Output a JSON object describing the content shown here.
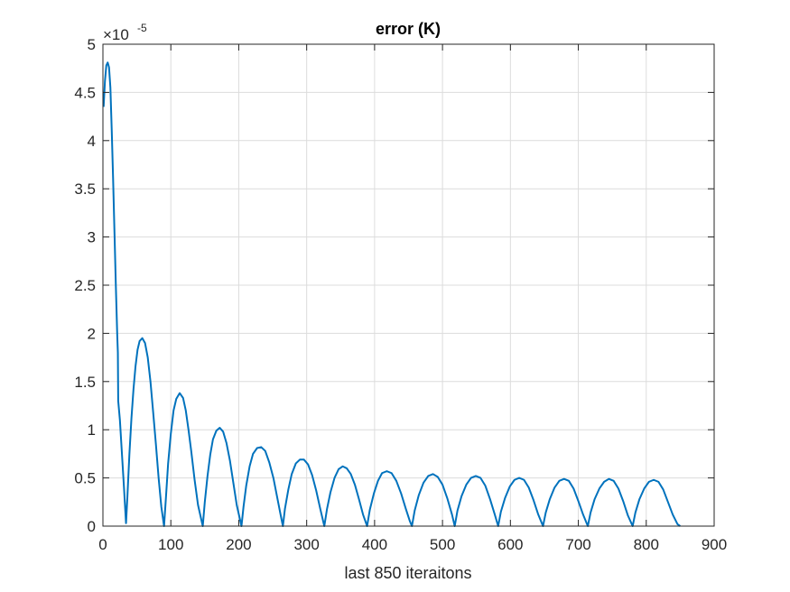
{
  "chart_data": {
    "type": "line",
    "title": "error (K)",
    "xlabel": "last 850 iteraitons",
    "ylabel": "",
    "xlim": [
      0,
      900
    ],
    "ylim": [
      0,
      5
    ],
    "y_exponent_label": "×10",
    "y_exponent": "-5",
    "x_ticks": [
      0,
      100,
      200,
      300,
      400,
      500,
      600,
      700,
      800,
      900
    ],
    "x_tick_labels": [
      "0",
      "100",
      "200",
      "300",
      "400",
      "500",
      "600",
      "700",
      "800",
      "900"
    ],
    "y_ticks": [
      0,
      0.5,
      1,
      1.5,
      2,
      2.5,
      3,
      3.5,
      4,
      4.5,
      5
    ],
    "y_tick_labels": [
      "0",
      "0.5",
      "1",
      "1.5",
      "2",
      "2.5",
      "3",
      "3.5",
      "4",
      "4.5",
      "5"
    ],
    "grid": true,
    "series": [
      {
        "color": "#0072BD",
        "points": [
          [
            1,
            4.35
          ],
          [
            3,
            4.62
          ],
          [
            5,
            4.78
          ],
          [
            7,
            4.81
          ],
          [
            9,
            4.76
          ],
          [
            11,
            4.55
          ],
          [
            13,
            4.1
          ],
          [
            15,
            3.6
          ],
          [
            17,
            3.05
          ],
          [
            19,
            2.5
          ],
          [
            21,
            2.0
          ],
          [
            22,
            1.8
          ],
          [
            22.5,
            1.3
          ],
          [
            25,
            1.1
          ],
          [
            28,
            0.75
          ],
          [
            31,
            0.4
          ],
          [
            34,
            0.03
          ],
          [
            36,
            0.3
          ],
          [
            39,
            0.75
          ],
          [
            42,
            1.12
          ],
          [
            45,
            1.42
          ],
          [
            48,
            1.66
          ],
          [
            51,
            1.83
          ],
          [
            54,
            1.92
          ],
          [
            58,
            1.95
          ],
          [
            62,
            1.9
          ],
          [
            66,
            1.75
          ],
          [
            70,
            1.5
          ],
          [
            74,
            1.18
          ],
          [
            78,
            0.85
          ],
          [
            82,
            0.5
          ],
          [
            86,
            0.2
          ],
          [
            90,
            0.0
          ],
          [
            93,
            0.32
          ],
          [
            96,
            0.65
          ],
          [
            100,
            0.96
          ],
          [
            104,
            1.2
          ],
          [
            108,
            1.32
          ],
          [
            113,
            1.38
          ],
          [
            118,
            1.33
          ],
          [
            122,
            1.2
          ],
          [
            126,
            1.0
          ],
          [
            130,
            0.78
          ],
          [
            135,
            0.48
          ],
          [
            140,
            0.22
          ],
          [
            147,
            0.0
          ],
          [
            150,
            0.25
          ],
          [
            154,
            0.52
          ],
          [
            158,
            0.74
          ],
          [
            162,
            0.9
          ],
          [
            167,
            0.99
          ],
          [
            172,
            1.02
          ],
          [
            177,
            0.98
          ],
          [
            182,
            0.86
          ],
          [
            187,
            0.68
          ],
          [
            192,
            0.45
          ],
          [
            197,
            0.22
          ],
          [
            204,
            0.0
          ],
          [
            207,
            0.2
          ],
          [
            211,
            0.42
          ],
          [
            216,
            0.62
          ],
          [
            221,
            0.75
          ],
          [
            227,
            0.81
          ],
          [
            233,
            0.82
          ],
          [
            239,
            0.78
          ],
          [
            245,
            0.66
          ],
          [
            251,
            0.5
          ],
          [
            256,
            0.32
          ],
          [
            261,
            0.14
          ],
          [
            265,
            0.0
          ],
          [
            268,
            0.18
          ],
          [
            273,
            0.38
          ],
          [
            278,
            0.54
          ],
          [
            284,
            0.65
          ],
          [
            290,
            0.69
          ],
          [
            296,
            0.69
          ],
          [
            302,
            0.64
          ],
          [
            308,
            0.53
          ],
          [
            314,
            0.37
          ],
          [
            320,
            0.18
          ],
          [
            326,
            0.0
          ],
          [
            330,
            0.18
          ],
          [
            335,
            0.35
          ],
          [
            341,
            0.5
          ],
          [
            347,
            0.59
          ],
          [
            353,
            0.62
          ],
          [
            359,
            0.6
          ],
          [
            365,
            0.54
          ],
          [
            371,
            0.43
          ],
          [
            377,
            0.28
          ],
          [
            383,
            0.12
          ],
          [
            389,
            0.0
          ],
          [
            393,
            0.17
          ],
          [
            399,
            0.34
          ],
          [
            405,
            0.47
          ],
          [
            411,
            0.55
          ],
          [
            418,
            0.57
          ],
          [
            425,
            0.55
          ],
          [
            432,
            0.47
          ],
          [
            439,
            0.34
          ],
          [
            446,
            0.18
          ],
          [
            452,
            0.05
          ],
          [
            455,
            0.0
          ],
          [
            459,
            0.16
          ],
          [
            465,
            0.32
          ],
          [
            472,
            0.45
          ],
          [
            479,
            0.52
          ],
          [
            486,
            0.54
          ],
          [
            493,
            0.51
          ],
          [
            500,
            0.43
          ],
          [
            507,
            0.29
          ],
          [
            514,
            0.12
          ],
          [
            518,
            0.0
          ],
          [
            522,
            0.16
          ],
          [
            528,
            0.31
          ],
          [
            535,
            0.43
          ],
          [
            542,
            0.5
          ],
          [
            549,
            0.52
          ],
          [
            556,
            0.5
          ],
          [
            563,
            0.42
          ],
          [
            570,
            0.28
          ],
          [
            577,
            0.12
          ],
          [
            582,
            0.0
          ],
          [
            586,
            0.15
          ],
          [
            592,
            0.29
          ],
          [
            599,
            0.41
          ],
          [
            606,
            0.48
          ],
          [
            613,
            0.5
          ],
          [
            620,
            0.48
          ],
          [
            627,
            0.4
          ],
          [
            634,
            0.27
          ],
          [
            641,
            0.12
          ],
          [
            648,
            0.0
          ],
          [
            652,
            0.14
          ],
          [
            658,
            0.28
          ],
          [
            665,
            0.4
          ],
          [
            672,
            0.47
          ],
          [
            679,
            0.49
          ],
          [
            686,
            0.47
          ],
          [
            693,
            0.39
          ],
          [
            700,
            0.26
          ],
          [
            707,
            0.12
          ],
          [
            714,
            0.0
          ],
          [
            718,
            0.14
          ],
          [
            724,
            0.28
          ],
          [
            731,
            0.39
          ],
          [
            738,
            0.46
          ],
          [
            745,
            0.49
          ],
          [
            752,
            0.47
          ],
          [
            759,
            0.39
          ],
          [
            766,
            0.26
          ],
          [
            773,
            0.11
          ],
          [
            780,
            0.0
          ],
          [
            784,
            0.14
          ],
          [
            790,
            0.28
          ],
          [
            797,
            0.39
          ],
          [
            804,
            0.46
          ],
          [
            811,
            0.48
          ],
          [
            818,
            0.46
          ],
          [
            825,
            0.38
          ],
          [
            832,
            0.25
          ],
          [
            839,
            0.12
          ],
          [
            846,
            0.02
          ],
          [
            850,
            0.0
          ]
        ]
      }
    ]
  }
}
